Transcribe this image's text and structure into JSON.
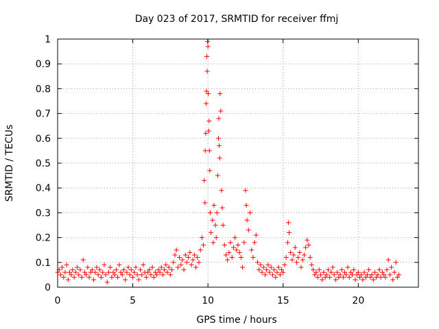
{
  "chart_data": {
    "type": "scatter",
    "title": "Day 023 of 2017, SRMTID for receiver ffmj",
    "xlabel": "GPS time / hours",
    "ylabel": "SRMTID / TECUs",
    "xlim": [
      0,
      24
    ],
    "ylim": [
      0,
      1
    ],
    "xticks": [
      "0",
      "5",
      "10",
      "15",
      "20"
    ],
    "yticks": [
      "0",
      "0.1",
      "0.2",
      "0.3",
      "0.4",
      "0.5",
      "0.6",
      "0.7",
      "0.8",
      "0.9",
      "1"
    ],
    "grid": true,
    "marker": "+",
    "series": [
      {
        "name": "SRMTID",
        "color": "#ff0000",
        "points": [
          [
            0.0,
            0.06
          ],
          [
            0.1,
            0.07
          ],
          [
            0.2,
            0.05
          ],
          [
            0.3,
            0.08
          ],
          [
            0.4,
            0.04
          ],
          [
            0.5,
            0.06
          ],
          [
            0.6,
            0.09
          ],
          [
            0.7,
            0.03
          ],
          [
            0.8,
            0.06
          ],
          [
            0.9,
            0.05
          ],
          [
            1.0,
            0.07
          ],
          [
            1.1,
            0.04
          ],
          [
            1.2,
            0.06
          ],
          [
            1.3,
            0.08
          ],
          [
            1.4,
            0.05
          ],
          [
            1.5,
            0.07
          ],
          [
            1.6,
            0.04
          ],
          [
            1.7,
            0.11
          ],
          [
            1.8,
            0.06
          ],
          [
            1.9,
            0.05
          ],
          [
            2.0,
            0.08
          ],
          [
            2.1,
            0.04
          ],
          [
            2.2,
            0.06
          ],
          [
            2.3,
            0.07
          ],
          [
            2.4,
            0.03
          ],
          [
            2.5,
            0.06
          ],
          [
            2.6,
            0.08
          ],
          [
            2.7,
            0.05
          ],
          [
            2.8,
            0.07
          ],
          [
            2.9,
            0.04
          ],
          [
            3.0,
            0.06
          ],
          [
            3.1,
            0.09
          ],
          [
            3.2,
            0.05
          ],
          [
            3.3,
            0.02
          ],
          [
            3.4,
            0.06
          ],
          [
            3.5,
            0.08
          ],
          [
            3.6,
            0.04
          ],
          [
            3.7,
            0.06
          ],
          [
            3.8,
            0.05
          ],
          [
            3.9,
            0.07
          ],
          [
            4.0,
            0.04
          ],
          [
            4.1,
            0.09
          ],
          [
            4.2,
            0.06
          ],
          [
            4.3,
            0.05
          ],
          [
            4.4,
            0.07
          ],
          [
            4.5,
            0.03
          ],
          [
            4.6,
            0.06
          ],
          [
            4.7,
            0.08
          ],
          [
            4.8,
            0.05
          ],
          [
            4.9,
            0.07
          ],
          [
            5.0,
            0.04
          ],
          [
            5.1,
            0.06
          ],
          [
            5.2,
            0.08
          ],
          [
            5.3,
            0.05
          ],
          [
            5.4,
            0.03
          ],
          [
            5.5,
            0.07
          ],
          [
            5.6,
            0.05
          ],
          [
            5.7,
            0.09
          ],
          [
            5.8,
            0.06
          ],
          [
            5.9,
            0.04
          ],
          [
            6.0,
            0.06
          ],
          [
            6.1,
            0.07
          ],
          [
            6.2,
            0.05
          ],
          [
            6.3,
            0.08
          ],
          [
            6.4,
            0.04
          ],
          [
            6.5,
            0.06
          ],
          [
            6.6,
            0.05
          ],
          [
            6.7,
            0.07
          ],
          [
            6.8,
            0.06
          ],
          [
            6.9,
            0.08
          ],
          [
            7.0,
            0.05
          ],
          [
            7.1,
            0.07
          ],
          [
            7.2,
            0.09
          ],
          [
            7.3,
            0.06
          ],
          [
            7.4,
            0.08
          ],
          [
            7.5,
            0.05
          ],
          [
            7.6,
            0.07
          ],
          [
            7.7,
            0.1
          ],
          [
            7.8,
            0.13
          ],
          [
            7.9,
            0.15
          ],
          [
            8.0,
            0.08
          ],
          [
            8.1,
            0.12
          ],
          [
            8.2,
            0.09
          ],
          [
            8.3,
            0.11
          ],
          [
            8.4,
            0.07
          ],
          [
            8.5,
            0.13
          ],
          [
            8.6,
            0.1
          ],
          [
            8.7,
            0.12
          ],
          [
            8.8,
            0.14
          ],
          [
            8.9,
            0.09
          ],
          [
            9.0,
            0.11
          ],
          [
            9.1,
            0.13
          ],
          [
            9.2,
            0.08
          ],
          [
            9.3,
            0.12
          ],
          [
            9.4,
            0.1
          ],
          [
            9.5,
            0.15
          ],
          [
            9.6,
            0.2
          ],
          [
            9.7,
            0.17
          ],
          [
            9.75,
            0.43
          ],
          [
            9.8,
            0.34
          ],
          [
            9.82,
            0.55
          ],
          [
            9.85,
            0.62
          ],
          [
            9.88,
            0.74
          ],
          [
            9.9,
            0.79
          ],
          [
            9.92,
            0.93
          ],
          [
            9.95,
            0.87
          ],
          [
            9.97,
            0.99
          ],
          [
            10.0,
            0.97
          ],
          [
            10.02,
            0.78
          ],
          [
            10.05,
            0.63
          ],
          [
            10.08,
            0.67
          ],
          [
            10.1,
            0.55
          ],
          [
            10.12,
            0.47
          ],
          [
            10.15,
            0.3
          ],
          [
            10.2,
            0.22
          ],
          [
            10.3,
            0.27
          ],
          [
            10.35,
            0.18
          ],
          [
            10.4,
            0.33
          ],
          [
            10.5,
            0.25
          ],
          [
            10.55,
            0.2
          ],
          [
            10.6,
            0.3
          ],
          [
            10.65,
            0.45
          ],
          [
            10.7,
            0.6
          ],
          [
            10.72,
            0.68
          ],
          [
            10.75,
            0.57
          ],
          [
            10.78,
            0.52
          ],
          [
            10.8,
            0.78
          ],
          [
            10.85,
            0.71
          ],
          [
            10.9,
            0.39
          ],
          [
            10.95,
            0.32
          ],
          [
            11.0,
            0.25
          ],
          [
            11.1,
            0.17
          ],
          [
            11.2,
            0.13
          ],
          [
            11.3,
            0.11
          ],
          [
            11.4,
            0.14
          ],
          [
            11.5,
            0.18
          ],
          [
            11.6,
            0.12
          ],
          [
            11.7,
            0.16
          ],
          [
            11.8,
            0.2
          ],
          [
            11.9,
            0.15
          ],
          [
            12.0,
            0.17
          ],
          [
            12.1,
            0.14
          ],
          [
            12.2,
            0.12
          ],
          [
            12.3,
            0.08
          ],
          [
            12.4,
            0.18
          ],
          [
            12.5,
            0.39
          ],
          [
            12.55,
            0.33
          ],
          [
            12.6,
            0.27
          ],
          [
            12.7,
            0.23
          ],
          [
            12.8,
            0.3
          ],
          [
            12.9,
            0.15
          ],
          [
            13.0,
            0.12
          ],
          [
            13.1,
            0.18
          ],
          [
            13.2,
            0.21
          ],
          [
            13.3,
            0.1
          ],
          [
            13.4,
            0.07
          ],
          [
            13.5,
            0.09
          ],
          [
            13.6,
            0.06
          ],
          [
            13.7,
            0.08
          ],
          [
            13.8,
            0.05
          ],
          [
            13.9,
            0.07
          ],
          [
            14.0,
            0.09
          ],
          [
            14.1,
            0.06
          ],
          [
            14.2,
            0.08
          ],
          [
            14.3,
            0.05
          ],
          [
            14.4,
            0.07
          ],
          [
            14.5,
            0.04
          ],
          [
            14.6,
            0.06
          ],
          [
            14.7,
            0.08
          ],
          [
            14.8,
            0.05
          ],
          [
            14.9,
            0.07
          ],
          [
            15.0,
            0.06
          ],
          [
            15.1,
            0.09
          ],
          [
            15.2,
            0.12
          ],
          [
            15.3,
            0.18
          ],
          [
            15.35,
            0.26
          ],
          [
            15.4,
            0.22
          ],
          [
            15.5,
            0.14
          ],
          [
            15.6,
            0.11
          ],
          [
            15.7,
            0.13
          ],
          [
            15.8,
            0.16
          ],
          [
            15.9,
            0.1
          ],
          [
            16.0,
            0.12
          ],
          [
            16.1,
            0.14
          ],
          [
            16.2,
            0.08
          ],
          [
            16.3,
            0.11
          ],
          [
            16.4,
            0.13
          ],
          [
            16.5,
            0.16
          ],
          [
            16.6,
            0.19
          ],
          [
            16.7,
            0.17
          ],
          [
            16.8,
            0.12
          ],
          [
            16.9,
            0.09
          ],
          [
            17.0,
            0.07
          ],
          [
            17.1,
            0.05
          ],
          [
            17.2,
            0.06
          ],
          [
            17.3,
            0.04
          ],
          [
            17.4,
            0.07
          ],
          [
            17.5,
            0.05
          ],
          [
            17.6,
            0.03
          ],
          [
            17.7,
            0.06
          ],
          [
            17.8,
            0.04
          ],
          [
            17.9,
            0.05
          ],
          [
            18.0,
            0.07
          ],
          [
            18.1,
            0.04
          ],
          [
            18.2,
            0.06
          ],
          [
            18.3,
            0.08
          ],
          [
            18.4,
            0.05
          ],
          [
            18.5,
            0.03
          ],
          [
            18.6,
            0.06
          ],
          [
            18.7,
            0.04
          ],
          [
            18.8,
            0.05
          ],
          [
            18.9,
            0.07
          ],
          [
            19.0,
            0.04
          ],
          [
            19.1,
            0.06
          ],
          [
            19.2,
            0.05
          ],
          [
            19.3,
            0.08
          ],
          [
            19.4,
            0.04
          ],
          [
            19.5,
            0.06
          ],
          [
            19.6,
            0.05
          ],
          [
            19.7,
            0.07
          ],
          [
            19.8,
            0.03
          ],
          [
            19.9,
            0.05
          ],
          [
            20.0,
            0.06
          ],
          [
            20.1,
            0.04
          ],
          [
            20.2,
            0.05
          ],
          [
            20.3,
            0.03
          ],
          [
            20.4,
            0.06
          ],
          [
            20.5,
            0.04
          ],
          [
            20.6,
            0.05
          ],
          [
            20.7,
            0.07
          ],
          [
            20.8,
            0.04
          ],
          [
            20.9,
            0.05
          ],
          [
            21.0,
            0.03
          ],
          [
            21.1,
            0.06
          ],
          [
            21.2,
            0.04
          ],
          [
            21.3,
            0.05
          ],
          [
            21.4,
            0.07
          ],
          [
            21.5,
            0.04
          ],
          [
            21.6,
            0.06
          ],
          [
            21.7,
            0.05
          ],
          [
            21.8,
            0.04
          ],
          [
            21.9,
            0.07
          ],
          [
            22.0,
            0.11
          ],
          [
            22.1,
            0.05
          ],
          [
            22.2,
            0.08
          ],
          [
            22.3,
            0.03
          ],
          [
            22.4,
            0.06
          ],
          [
            22.5,
            0.1
          ],
          [
            22.6,
            0.04
          ],
          [
            22.7,
            0.05
          ]
        ]
      }
    ]
  }
}
